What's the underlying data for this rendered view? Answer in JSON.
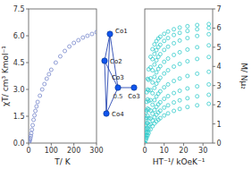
{
  "chart_data": [
    {
      "type": "scatter",
      "xlabel": "T/ K",
      "ylabel": "χT/ cm³ Kmol⁻¹",
      "xlim": [
        0,
        300
      ],
      "ylim": [
        0.0,
        7.5
      ],
      "xticks": [
        0,
        100,
        200,
        300
      ],
      "yticks": [
        {
          "value": 0.0,
          "label": "0.0"
        },
        1.5,
        {
          "value": 3.0,
          "label": "3.0"
        },
        4.5,
        {
          "value": 6.0,
          "label": "6.0"
        },
        7.5
      ],
      "x": [
        2,
        4,
        6,
        8,
        10,
        12,
        15,
        18,
        22,
        26,
        30,
        35,
        40,
        50,
        60,
        70,
        80,
        90,
        100,
        120,
        140,
        160,
        180,
        200,
        220,
        240,
        260,
        280,
        300
      ],
      "values": [
        0.05,
        0.1,
        0.18,
        0.28,
        0.4,
        0.55,
        0.75,
        1.0,
        1.3,
        1.55,
        1.8,
        2.05,
        2.3,
        2.65,
        3.0,
        3.3,
        3.6,
        3.85,
        4.1,
        4.5,
        4.85,
        5.15,
        5.4,
        5.6,
        5.75,
        5.9,
        6.0,
        6.1,
        6.2
      ],
      "color": "#7788cc",
      "marker": "circle",
      "annotations": [
        "Co2",
        "Co1",
        "Co3",
        "Co4",
        "Co3",
        "0.5"
      ]
    },
    {
      "type": "scatter",
      "xlabel": "HT⁻¹/ kOeK⁻¹",
      "ylabel": "M/ Nμ₂",
      "xlim": [
        0,
        35
      ],
      "ylim": [
        0.0,
        7.0
      ],
      "xticks": [
        0,
        10,
        20,
        30
      ],
      "yticks": [
        0,
        1,
        2,
        3,
        4,
        5,
        6,
        7
      ],
      "series": [
        {
          "color": "#33cccc",
          "marker": "circle",
          "x": [
            0,
            0.5,
            1,
            1.5,
            2,
            3,
            4,
            5,
            6,
            7,
            8,
            10,
            12,
            15,
            18,
            22,
            27,
            33
          ],
          "values": [
            0,
            0.15,
            0.28,
            0.4,
            0.52,
            0.72,
            0.88,
            1.02,
            1.13,
            1.22,
            1.3,
            1.44,
            1.55,
            1.68,
            1.78,
            1.88,
            1.97,
            2.05
          ]
        },
        {
          "color": "#33cccc",
          "marker": "circle",
          "x": [
            0,
            0.5,
            1,
            1.5,
            2,
            3,
            4,
            5,
            6,
            7,
            8,
            10,
            12,
            15,
            18,
            22,
            27,
            33
          ],
          "values": [
            0,
            0.22,
            0.4,
            0.57,
            0.72,
            0.98,
            1.18,
            1.35,
            1.48,
            1.6,
            1.69,
            1.85,
            1.97,
            2.12,
            2.23,
            2.34,
            2.44,
            2.52
          ]
        },
        {
          "color": "#33cccc",
          "marker": "circle",
          "x": [
            0,
            0.5,
            1,
            1.5,
            2,
            3,
            4,
            5,
            6,
            7,
            8,
            10,
            12,
            15,
            18,
            22,
            27,
            33
          ],
          "values": [
            0,
            0.3,
            0.55,
            0.77,
            0.96,
            1.28,
            1.53,
            1.73,
            1.89,
            2.02,
            2.13,
            2.31,
            2.45,
            2.61,
            2.73,
            2.85,
            2.96,
            3.06
          ]
        },
        {
          "color": "#33cccc",
          "marker": "circle",
          "x": [
            0,
            0.5,
            1,
            1.5,
            2,
            3,
            4,
            5,
            6,
            7,
            8,
            10,
            12,
            15,
            18,
            22,
            27,
            33
          ],
          "values": [
            0,
            0.4,
            0.75,
            1.05,
            1.3,
            1.7,
            2.0,
            2.24,
            2.43,
            2.58,
            2.7,
            2.91,
            3.06,
            3.24,
            3.37,
            3.5,
            3.62,
            3.72
          ]
        },
        {
          "color": "#33cccc",
          "marker": "circle",
          "x": [
            0,
            0.5,
            1,
            1.5,
            2,
            3,
            4,
            5,
            6,
            7,
            8,
            10,
            12,
            15,
            18,
            22,
            27,
            33
          ],
          "values": [
            0,
            0.55,
            1.02,
            1.42,
            1.75,
            2.24,
            2.6,
            2.88,
            3.1,
            3.27,
            3.41,
            3.63,
            3.8,
            3.99,
            4.13,
            4.27,
            4.39,
            4.49
          ]
        },
        {
          "color": "#33cccc",
          "marker": "circle",
          "x": [
            0,
            0.5,
            1,
            1.5,
            2,
            3,
            4,
            5,
            6,
            7,
            8,
            10,
            12,
            15,
            18,
            22,
            27,
            33
          ],
          "values": [
            0,
            0.72,
            1.32,
            1.8,
            2.2,
            2.76,
            3.16,
            3.46,
            3.69,
            3.87,
            4.01,
            4.24,
            4.41,
            4.6,
            4.74,
            4.88,
            5.0,
            5.1
          ]
        },
        {
          "color": "#33cccc",
          "marker": "circle",
          "x": [
            0,
            0.5,
            1,
            1.5,
            2,
            3,
            4,
            5,
            6,
            7,
            8,
            10,
            12,
            15,
            18,
            22,
            27,
            33
          ],
          "values": [
            0,
            0.95,
            1.7,
            2.28,
            2.75,
            3.38,
            3.8,
            4.1,
            4.32,
            4.5,
            4.64,
            4.86,
            5.03,
            5.21,
            5.35,
            5.48,
            5.59,
            5.68
          ]
        },
        {
          "color": "#33cccc",
          "marker": "circle",
          "x": [
            0,
            0.5,
            1,
            1.5,
            2,
            3,
            4,
            5,
            6,
            7,
            8,
            10,
            12,
            15,
            18,
            22,
            27,
            33
          ],
          "values": [
            0,
            1.25,
            2.15,
            2.8,
            3.3,
            3.95,
            4.38,
            4.65,
            4.85,
            5.01,
            5.13,
            5.33,
            5.48,
            5.64,
            5.75,
            5.85,
            5.94,
            6.01
          ]
        },
        {
          "color": "#33cccc",
          "marker": "circle",
          "x": [
            0,
            0.5,
            1,
            1.5,
            2,
            3,
            4,
            5,
            6,
            7,
            8,
            10,
            12,
            15,
            18,
            22,
            27,
            33
          ],
          "values": [
            0,
            1.6,
            2.65,
            3.35,
            3.85,
            4.5,
            4.9,
            5.15,
            5.32,
            5.46,
            5.55,
            5.7,
            5.82,
            5.94,
            6.03,
            6.1,
            6.16,
            6.21
          ]
        }
      ]
    }
  ]
}
